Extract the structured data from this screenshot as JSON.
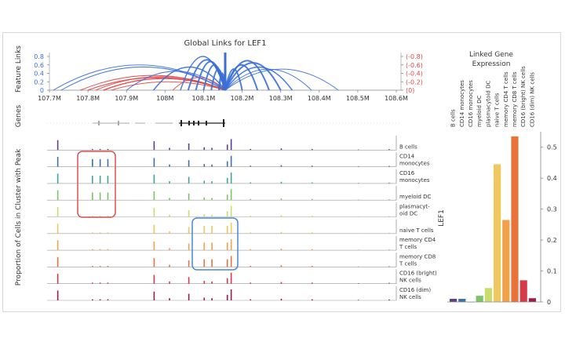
{
  "left_panel": {
    "title": "Global Links for LEF1",
    "feature_links_label": "Feature Links",
    "genes_label": "Genes",
    "proportion_label": "Proportion of Cells in Cluster with Peak",
    "x_ticks": [
      "107.7M",
      "107.8M",
      "107.9M",
      "108M",
      "108.1M",
      "108.2M",
      "108.3M",
      "108.4M",
      "108.5M",
      "108.6M"
    ],
    "left_axis_ticks": [
      "0.8",
      "0.6",
      "0.4",
      "0.2",
      "0"
    ],
    "right_axis_ticks": [
      "(-0.8)",
      "(-0.6)",
      "(-0.4)",
      "(-0.2)",
      "(0)"
    ]
  },
  "right_panel": {
    "title_line1": "Linked Gene",
    "title_line2": "Expression",
    "ylabel": "LEF1",
    "y_ticks": [
      "0.5",
      "0.4",
      "0.3",
      "0.2",
      "0.1",
      "0"
    ]
  },
  "colors": {
    "blue_links": "#3a6fd8",
    "red_links": "#e04848",
    "red_box": "#d9534f",
    "blue_box": "#4a86d8"
  },
  "chart_data": [
    {
      "type": "line",
      "x_range_M": [
        107.7,
        108.6
      ],
      "tracks": [
        {
          "label": "B cells",
          "color": "#5b3f8c"
        },
        {
          "label": "CD14\nmonocytes",
          "color": "#3e6fae"
        },
        {
          "label": "CD16\nmonocytes",
          "color": "#3fa59a"
        },
        {
          "label": "myeloid DC",
          "color": "#7cc36a"
        },
        {
          "label": "plasmacyt-\noid DC",
          "color": "#c9de6a"
        },
        {
          "label": "naive T cells",
          "color": "#f0c85f"
        },
        {
          "label": "memory CD4\nT cells",
          "color": "#f0a14a"
        },
        {
          "label": "memory CD8\nT cells",
          "color": "#e8723a"
        },
        {
          "label": "CD16 (bright)\nNK cells",
          "color": "#d43c4c"
        },
        {
          "label": "CD16 (dim)\nNK cells",
          "color": "#9e1c46"
        }
      ]
    },
    {
      "type": "bar",
      "categories": [
        "B cells",
        "CD14 monocytes",
        "CD16 monocytes",
        "myeloid DC",
        "plasmacytoid DC",
        "naive T cells",
        "memory CD4 T cells",
        "memory CD8 T cells",
        "CD16 (bright) NK cells",
        "CD16 (dim) NK cells"
      ],
      "values": [
        0.01,
        0.01,
        0.0,
        0.02,
        0.045,
        0.445,
        0.265,
        0.535,
        0.07,
        0.012
      ],
      "colors": [
        "#5b3f8c",
        "#3e6fae",
        "#3fa59a",
        "#7cc36a",
        "#c9de6a",
        "#f0c85f",
        "#f0a14a",
        "#e8723a",
        "#d43c4c",
        "#9e1c46"
      ],
      "ylabel": "LEF1",
      "ylim": [
        0,
        0.55
      ]
    }
  ]
}
